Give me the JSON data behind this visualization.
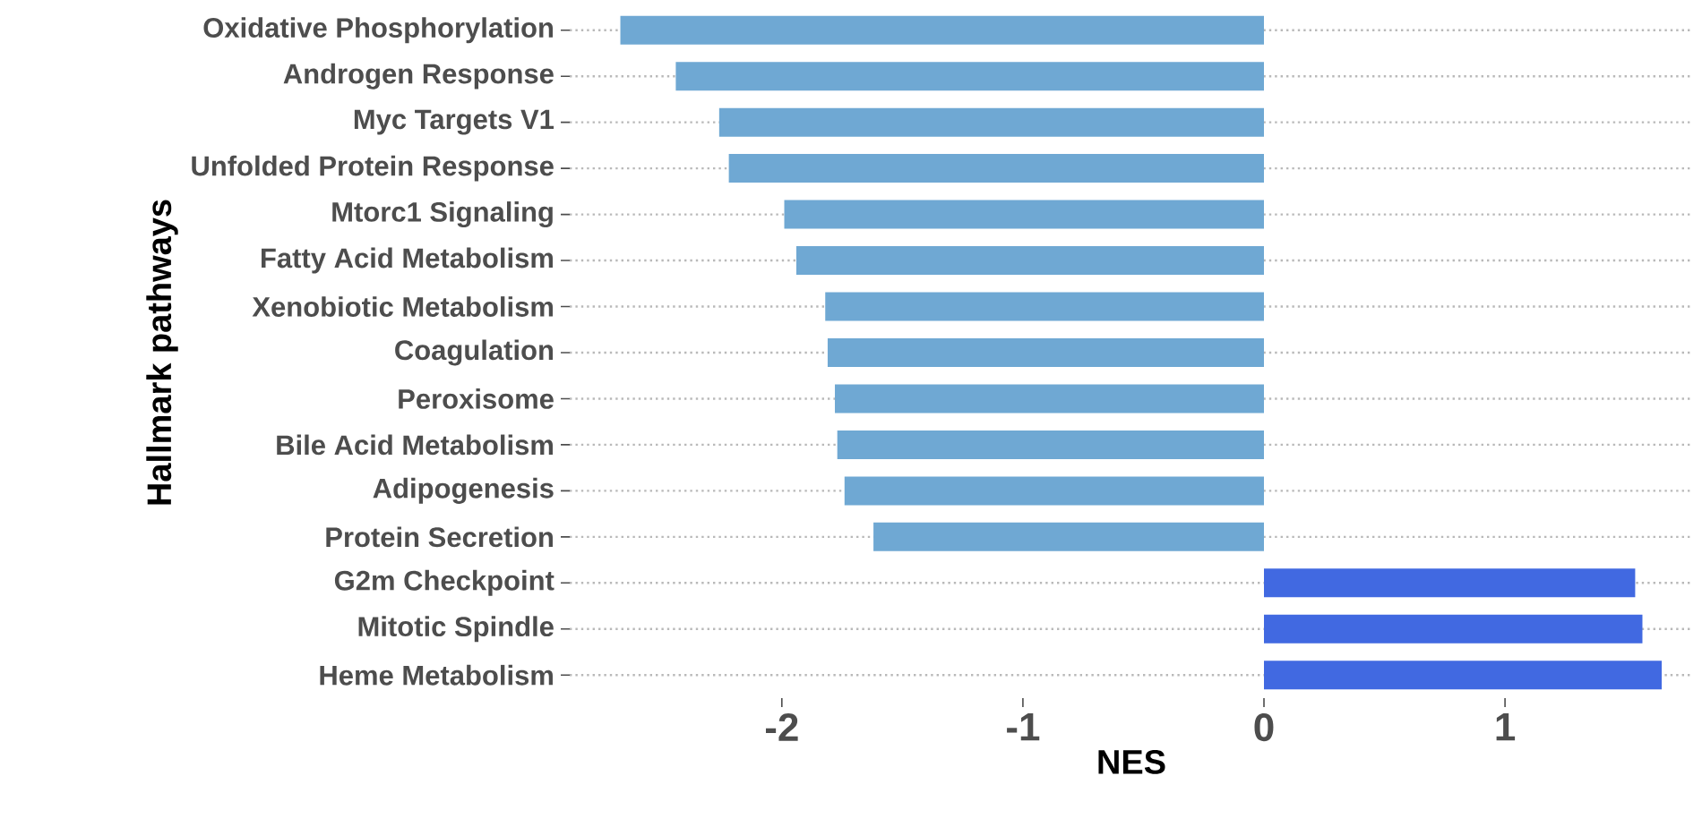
{
  "chart_data": {
    "type": "bar",
    "orientation": "horizontal",
    "xlabel": "NES",
    "ylabel": "Hallmark pathways",
    "categories": [
      "Oxidative Phosphorylation",
      "Androgen Response",
      "Myc Targets V1",
      "Unfolded Protein Response",
      "Mtorc1 Signaling",
      "Fatty Acid Metabolism",
      "Xenobiotic Metabolism",
      "Coagulation",
      "Peroxisome",
      "Bile Acid Metabolism",
      "Adipogenesis",
      "Protein Secretion",
      "G2m Checkpoint",
      "Mitotic Spindle",
      "Heme Metabolism"
    ],
    "values": [
      -2.67,
      -2.44,
      -2.26,
      -2.22,
      -1.99,
      -1.94,
      -1.82,
      -1.81,
      -1.78,
      -1.77,
      -1.74,
      -1.62,
      1.54,
      1.57,
      1.65
    ],
    "colors": [
      "#6fa8d3",
      "#6fa8d3",
      "#6fa8d3",
      "#6fa8d3",
      "#6fa8d3",
      "#6fa8d3",
      "#6fa8d3",
      "#6fa8d3",
      "#6fa8d3",
      "#6fa8d3",
      "#6fa8d3",
      "#6fa8d3",
      "#4169e1",
      "#4169e1",
      "#4169e1"
    ],
    "xlim": [
      -2.88,
      1.78
    ],
    "xticks": [
      -2,
      -1,
      0,
      1
    ],
    "grid": "y"
  }
}
